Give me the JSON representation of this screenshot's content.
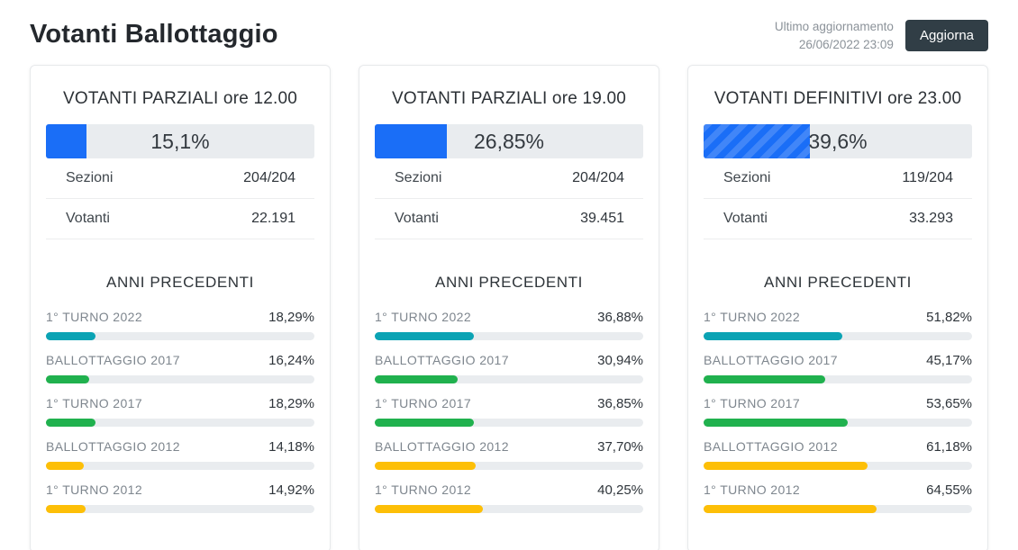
{
  "header": {
    "title": "Votanti Ballottaggio",
    "last_update_label": "Ultimo aggiornamento",
    "last_update_value": "26/06/2022 23:09",
    "refresh_label": "Aggiorna"
  },
  "colors": {
    "blue": "#1a6ef7",
    "teal": "#0ba3b4",
    "green": "#20b14e",
    "yellow": "#fdbf07",
    "button": "#313e46",
    "track": "#e9ecef"
  },
  "cards": [
    {
      "title": "VOTANTI PARZIALI ore 12.00",
      "percent_label": "15,1%",
      "percent_value": 15.1,
      "bar_color": "blue",
      "striped": false,
      "stats": [
        {
          "label": "Sezioni",
          "value": "204/204"
        },
        {
          "label": "Votanti",
          "value": "22.191"
        }
      ],
      "previous_title": "ANNI PRECEDENTI",
      "previous_years": [
        {
          "label": "1° TURNO 2022",
          "percent_label": "18,29%",
          "percent_value": 18.29,
          "color": "teal"
        },
        {
          "label": "BALLOTTAGGIO 2017",
          "percent_label": "16,24%",
          "percent_value": 16.24,
          "color": "green"
        },
        {
          "label": "1° TURNO 2017",
          "percent_label": "18,29%",
          "percent_value": 18.29,
          "color": "green"
        },
        {
          "label": "BALLOTTAGGIO 2012",
          "percent_label": "14,18%",
          "percent_value": 14.18,
          "color": "yellow"
        },
        {
          "label": "1° TURNO 2012",
          "percent_label": "14,92%",
          "percent_value": 14.92,
          "color": "yellow"
        }
      ]
    },
    {
      "title": "VOTANTI PARZIALI ore 19.00",
      "percent_label": "26,85%",
      "percent_value": 26.85,
      "bar_color": "blue",
      "striped": false,
      "stats": [
        {
          "label": "Sezioni",
          "value": "204/204"
        },
        {
          "label": "Votanti",
          "value": "39.451"
        }
      ],
      "previous_title": "ANNI PRECEDENTI",
      "previous_years": [
        {
          "label": "1° TURNO 2022",
          "percent_label": "36,88%",
          "percent_value": 36.88,
          "color": "teal"
        },
        {
          "label": "BALLOTTAGGIO 2017",
          "percent_label": "30,94%",
          "percent_value": 30.94,
          "color": "green"
        },
        {
          "label": "1° TURNO 2017",
          "percent_label": "36,85%",
          "percent_value": 36.85,
          "color": "green"
        },
        {
          "label": "BALLOTTAGGIO 2012",
          "percent_label": "37,70%",
          "percent_value": 37.7,
          "color": "yellow"
        },
        {
          "label": "1° TURNO 2012",
          "percent_label": "40,25%",
          "percent_value": 40.25,
          "color": "yellow"
        }
      ]
    },
    {
      "title": "VOTANTI DEFINITIVI ore 23.00",
      "percent_label": "39,6%",
      "percent_value": 39.6,
      "bar_color": "blue",
      "striped": true,
      "stats": [
        {
          "label": "Sezioni",
          "value": "119/204"
        },
        {
          "label": "Votanti",
          "value": "33.293"
        }
      ],
      "previous_title": "ANNI PRECEDENTI",
      "previous_years": [
        {
          "label": "1° TURNO 2022",
          "percent_label": "51,82%",
          "percent_value": 51.82,
          "color": "teal"
        },
        {
          "label": "BALLOTTAGGIO 2017",
          "percent_label": "45,17%",
          "percent_value": 45.17,
          "color": "green"
        },
        {
          "label": "1° TURNO 2017",
          "percent_label": "53,65%",
          "percent_value": 53.65,
          "color": "green"
        },
        {
          "label": "BALLOTTAGGIO 2012",
          "percent_label": "61,18%",
          "percent_value": 61.18,
          "color": "yellow"
        },
        {
          "label": "1° TURNO 2012",
          "percent_label": "64,55%",
          "percent_value": 64.55,
          "color": "yellow"
        }
      ]
    }
  ]
}
